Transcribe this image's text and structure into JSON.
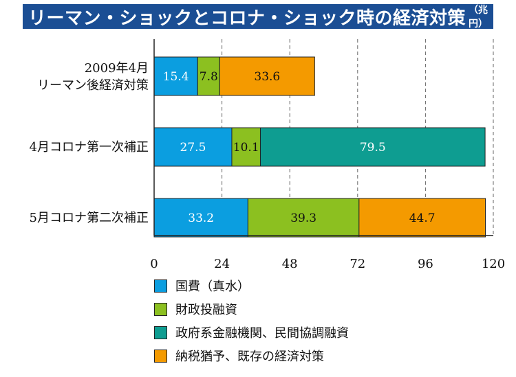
{
  "title": "リーマン・ショックとコロナ・ショック時の経済対策",
  "title_unit": "（兆円）",
  "chart_data": {
    "type": "bar",
    "orientation": "horizontal",
    "stacked": true,
    "categories": [
      "2009年4月\nリーマン後経済対策",
      "4月コロナ第一次補正",
      "5月コロナ第二次補正"
    ],
    "series": [
      {
        "name": "国費（真水）",
        "color": "#0b9ee0",
        "values": [
          15.4,
          27.5,
          33.2
        ]
      },
      {
        "name": "財政投融資",
        "color": "#8cc020",
        "values": [
          7.8,
          10.1,
          39.3
        ]
      },
      {
        "name": "政府系金融機関、民間協調融資",
        "color": "#0e9d91",
        "values": [
          0,
          79.5,
          0
        ]
      },
      {
        "name": "納税猶予、既存の経済対策",
        "color": "#f49a00",
        "values": [
          33.6,
          0,
          44.7
        ]
      }
    ],
    "data_labels": [
      [
        "15.4",
        "7.8",
        "",
        "33.6"
      ],
      [
        "27.5",
        "10.1",
        "79.5",
        ""
      ],
      [
        "33.2",
        "39.3",
        "",
        "44.7"
      ]
    ],
    "x_ticks": [
      0,
      24,
      48,
      72,
      96,
      120
    ],
    "xlim": [
      0,
      120
    ],
    "grid": "vertical-dashed",
    "legend_position": "bottom"
  }
}
